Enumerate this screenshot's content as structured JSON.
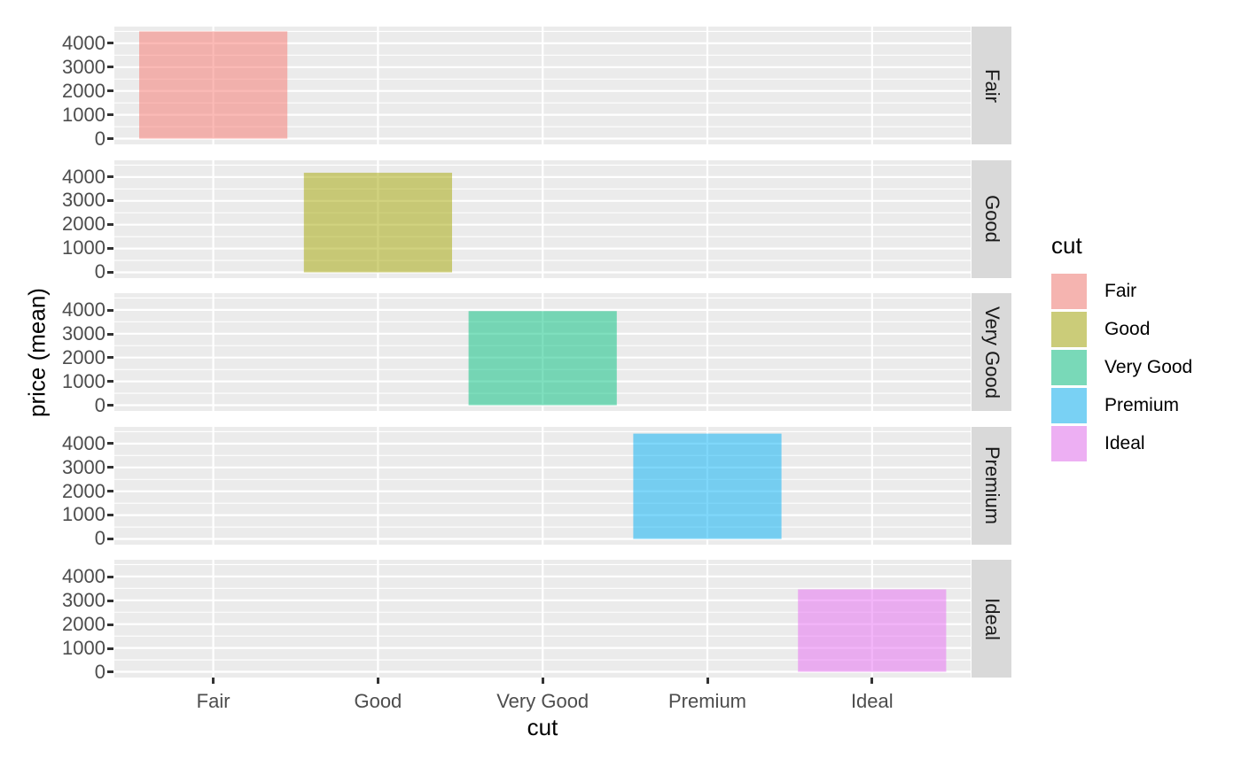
{
  "chart_data": {
    "type": "bar",
    "title": "",
    "xlabel": "cut",
    "ylabel": "price (mean)",
    "categories": [
      "Fair",
      "Good",
      "Very Good",
      "Premium",
      "Ideal"
    ],
    "values": [
      4500,
      4180,
      3950,
      4420,
      3460
    ],
    "y_ticks": [
      0,
      1000,
      2000,
      3000,
      4000
    ],
    "y_minor_ticks": [
      500,
      1500,
      2500,
      3500,
      4500
    ],
    "ylim": [
      -225,
      4700
    ],
    "grid": {
      "major": true,
      "minor": true,
      "color": "#FFFFFF",
      "panel_bg": "#EBEBEB"
    },
    "facets": {
      "variable": "cut",
      "labels": [
        "Fair",
        "Good",
        "Very Good",
        "Premium",
        "Ideal"
      ],
      "arrangement": "rows",
      "strip_position": "right",
      "strip_bg": "#D9D9D9",
      "strip_text_color": "#1A1A1A"
    },
    "legend": {
      "title": "cut",
      "position": "right",
      "entries": [
        {
          "label": "Fair",
          "color": "#F8766D"
        },
        {
          "label": "Good",
          "color": "#A3A500"
        },
        {
          "label": "Very Good",
          "color": "#00BF7D"
        },
        {
          "label": "Premium",
          "color": "#00B0F6"
        },
        {
          "label": "Ideal",
          "color": "#E76BF3"
        }
      ],
      "key_bg": "#F2F2F2"
    },
    "bar_alpha": 0.5,
    "colors": {
      "axis_text": "#4D4D4D",
      "axis_title": "#000000",
      "tick_marks": "#333333",
      "background": "#FFFFFF"
    }
  }
}
